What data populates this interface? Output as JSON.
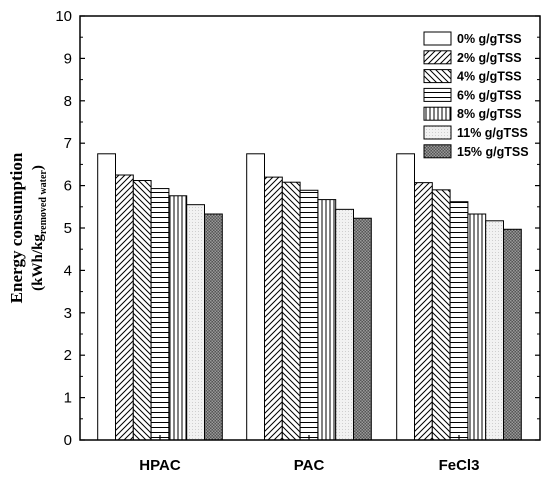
{
  "chart_data": {
    "type": "bar",
    "categories": [
      "HPAC",
      "PAC",
      "FeCl3"
    ],
    "series": [
      {
        "name": "0% g/gTSS",
        "values": [
          6.75,
          6.75,
          6.75
        ]
      },
      {
        "name": "2% g/gTSS",
        "values": [
          6.25,
          6.2,
          6.07
        ]
      },
      {
        "name": "4% g/gTSS",
        "values": [
          6.12,
          6.08,
          5.9
        ]
      },
      {
        "name": "6% g/gTSS",
        "values": [
          5.93,
          5.89,
          5.62
        ]
      },
      {
        "name": "8% g/gTSS",
        "values": [
          5.76,
          5.67,
          5.33
        ]
      },
      {
        "name": "11% g/gTSS",
        "values": [
          5.55,
          5.44,
          5.17
        ]
      },
      {
        "name": "15% g/gTSS",
        "values": [
          5.33,
          5.23,
          4.97
        ]
      }
    ],
    "ylabel_line1": "Energy consumption",
    "ylabel_line2_main": "(kWh/kg",
    "ylabel_line2_sub": "removed water",
    "ylabel_line2_end": ")",
    "ylim": [
      0,
      10
    ],
    "yticks": [
      "0",
      "1",
      "2",
      "3",
      "4",
      "5",
      "6",
      "7",
      "8",
      "9",
      "10"
    ],
    "grid": false,
    "legend_position": "top-right",
    "patterns": [
      "blank",
      "diagonal-up",
      "diagonal-down",
      "horizontal",
      "vertical",
      "dots-light",
      "crosshatch-dark"
    ]
  }
}
